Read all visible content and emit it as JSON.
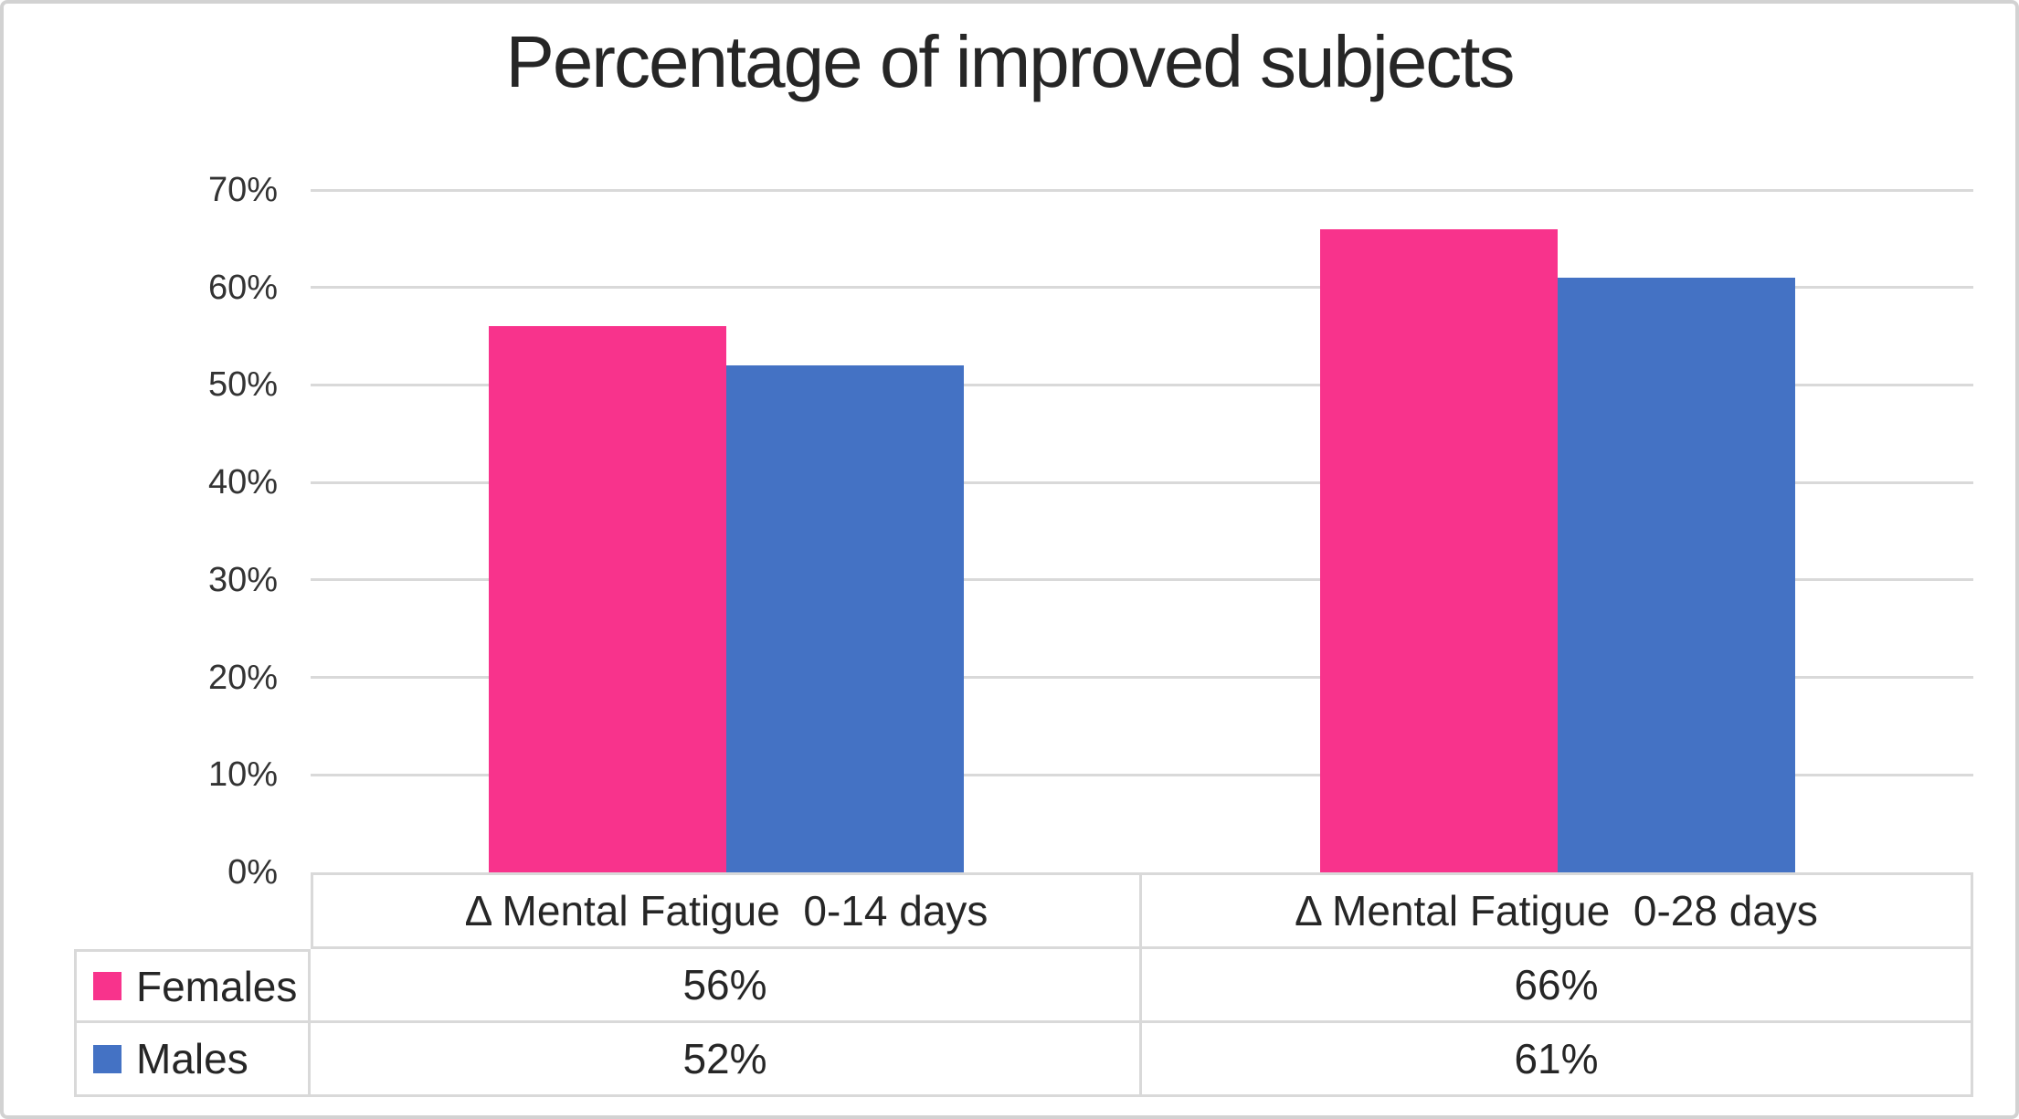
{
  "chart_data": {
    "type": "bar",
    "title": "Percentage of improved subjects",
    "categories": [
      "Δ Mental Fatigue  0-14 days",
      "Δ Mental Fatigue  0-28 days"
    ],
    "series": [
      {
        "name": "Females",
        "color": "#F8338C",
        "values": [
          56,
          66
        ]
      },
      {
        "name": "Males",
        "color": "#4472C4",
        "values": [
          52,
          61
        ]
      }
    ],
    "value_suffix": "%",
    "xlabel": "",
    "ylabel": "",
    "ylim": [
      0,
      70
    ],
    "ytick_step": 10,
    "ytick_labels": [
      "0%",
      "10%",
      "20%",
      "30%",
      "40%",
      "50%",
      "60%",
      "70%"
    ],
    "grid": "horizontal",
    "legend_position": "data-table-left-column",
    "data_table": {
      "shown": true,
      "rows": [
        {
          "label": "Females",
          "cells": [
            "56%",
            "66%"
          ]
        },
        {
          "label": "Males",
          "cells": [
            "52%",
            "61%"
          ]
        }
      ]
    }
  },
  "style": {
    "female_color": "#F8338C",
    "male_color": "#4472C4",
    "gridline_color": "#D9D9D9",
    "table_border_color": "#D9D9D9",
    "text_color": "#262626",
    "outer_border_color": "#D2D2D2",
    "background_color": "#FFFFFF"
  }
}
